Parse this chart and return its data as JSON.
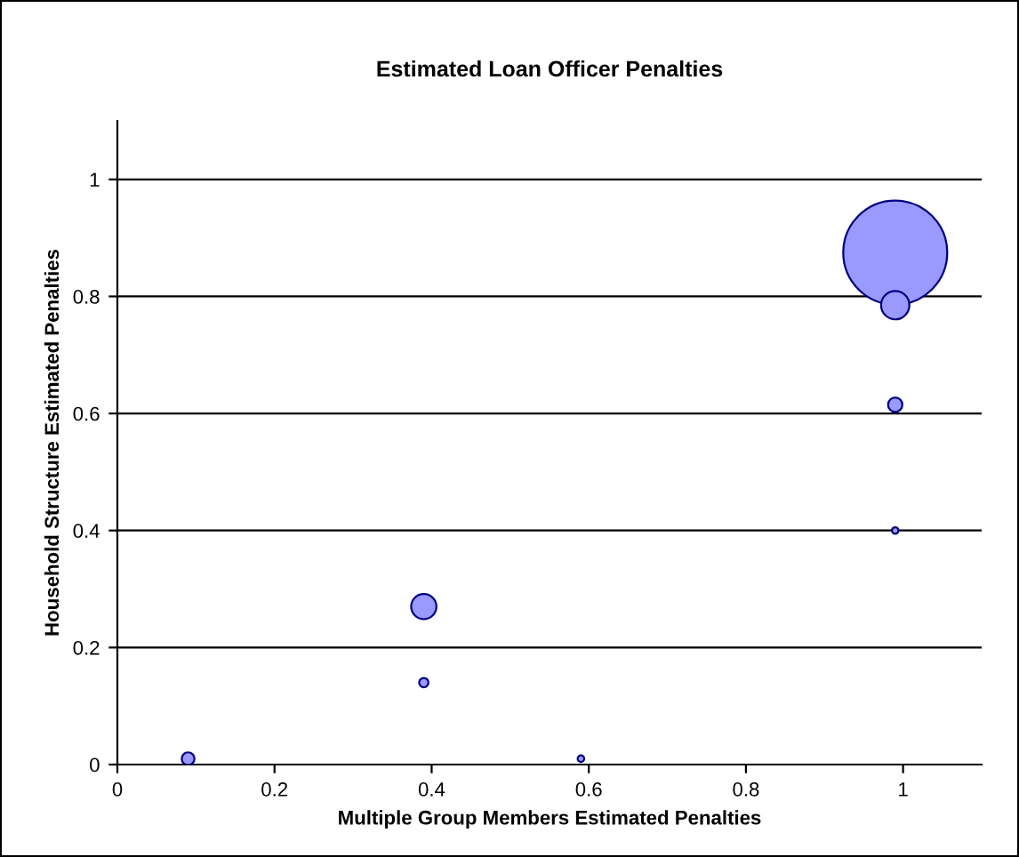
{
  "chart_data": {
    "type": "bubble",
    "title": "Estimated Loan Officer Penalties",
    "xlabel": "Multiple Group Members Estimated Penalties",
    "ylabel": "Household Structure Estimated Penalties",
    "x": [
      0.09,
      0.39,
      0.39,
      0.59,
      0.99,
      0.99,
      0.99,
      0.99
    ],
    "values": [
      0.01,
      0.27,
      0.14,
      0.01,
      0.875,
      0.785,
      0.615,
      0.4
    ],
    "sizes": [
      0.015,
      0.059,
      0.008,
      0.004,
      1,
      0.074,
      0.019,
      0.004
    ],
    "color": "#9999ff",
    "xlim": [
      0,
      1.1
    ],
    "xticks": [
      0,
      0.2,
      0.4,
      0.6,
      0.8,
      1
    ],
    "ylim": [
      0,
      1.1
    ],
    "yticks": [
      0,
      0.2,
      0.4,
      0.6,
      0.8,
      1
    ],
    "grid": "y",
    "legend": false
  }
}
